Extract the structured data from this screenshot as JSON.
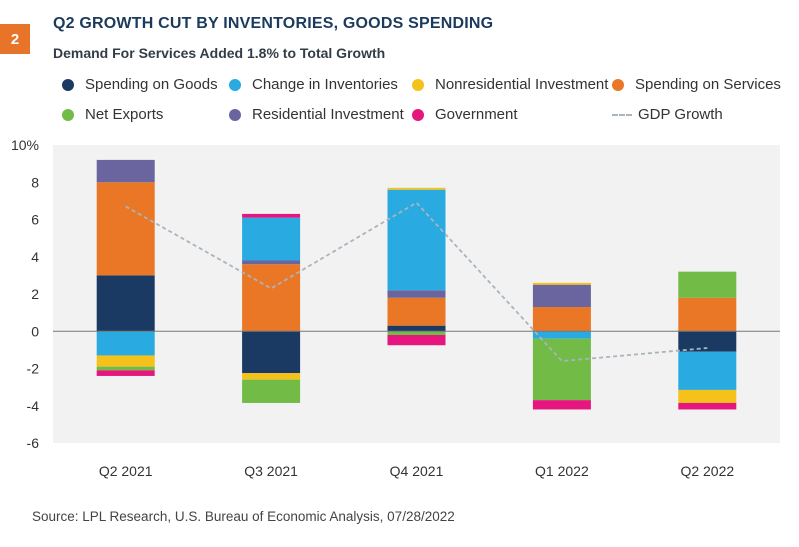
{
  "figure": {
    "number": "2",
    "title": "Q2 GROWTH CUT BY INVENTORIES, GOODS SPENDING",
    "subtitle": "Demand For Services Added 1.8% to Total Growth",
    "source": "Source: LPL Research, U.S. Bureau of Economic Analysis,  07/28/2022"
  },
  "legend": [
    {
      "label": "Spending on Goods",
      "color": "#1b3a63"
    },
    {
      "label": "Change in Inventories",
      "color": "#29aae1"
    },
    {
      "label": "Nonresidential Investment",
      "color": "#f5c11b"
    },
    {
      "label": "Spending on Services",
      "color": "#ea7726"
    },
    {
      "label": "Net Exports",
      "color": "#72bb46"
    },
    {
      "label": "Residential Investment",
      "color": "#6a649f"
    },
    {
      "label": "Government",
      "color": "#e5177e"
    },
    {
      "label": "GDP Growth",
      "color": "#aab4bd"
    }
  ],
  "chart_data": {
    "type": "bar",
    "stacked": true,
    "categories": [
      "Q2 2021",
      "Q3 2021",
      "Q4 2021",
      "Q1 2022",
      "Q2 2022"
    ],
    "ylim": [
      -6,
      10
    ],
    "yticks": [
      -6,
      -4,
      -2,
      0,
      2,
      4,
      6,
      8,
      10
    ],
    "ytick_labels": [
      "-6",
      "-4",
      "-2",
      "0",
      "2",
      "4",
      "6",
      "8",
      "10%"
    ],
    "series": [
      {
        "name": "Spending on Goods",
        "color": "#1b3a63",
        "values": [
          3.0,
          -2.25,
          0.3,
          0.0,
          -1.1
        ]
      },
      {
        "name": "Spending on Services",
        "color": "#ea7726",
        "values": [
          5.0,
          3.6,
          1.5,
          1.3,
          1.8
        ]
      },
      {
        "name": "Residential Investment",
        "color": "#6a649f",
        "values": [
          1.2,
          0.2,
          0.4,
          1.2,
          0.0
        ]
      },
      {
        "name": "Change in Inventories",
        "color": "#29aae1",
        "values": [
          -1.3,
          2.3,
          5.4,
          -0.4,
          -2.05
        ]
      },
      {
        "name": "Nonresidential Investment",
        "color": "#f5c11b",
        "values": [
          -0.6,
          -0.35,
          0.1,
          0.1,
          -0.7
        ]
      },
      {
        "name": "Net Exports",
        "color": "#72bb46",
        "values": [
          -0.2,
          -1.25,
          -0.2,
          -3.3,
          1.4
        ]
      },
      {
        "name": "Government",
        "color": "#e5177e",
        "values": [
          -0.3,
          0.2,
          -0.55,
          -0.5,
          -0.35
        ]
      }
    ],
    "line": {
      "name": "GDP Growth",
      "color": "#aab4bd",
      "values": [
        6.7,
        2.3,
        6.9,
        -1.6,
        -0.9
      ]
    }
  }
}
